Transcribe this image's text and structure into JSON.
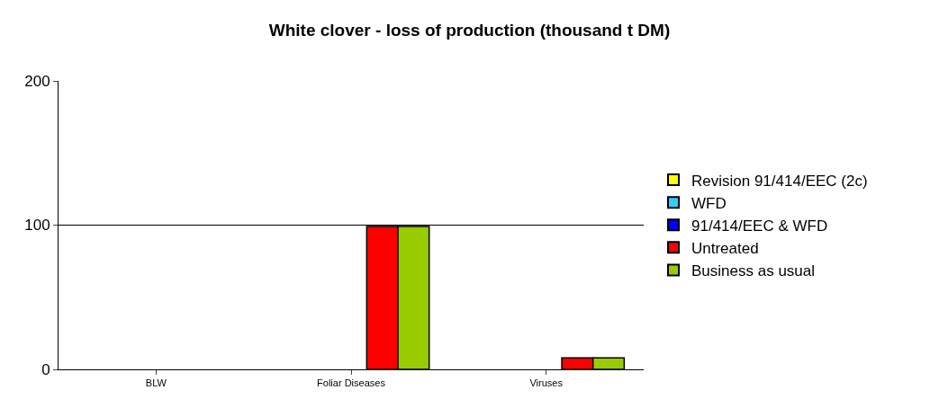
{
  "chart_data": {
    "type": "bar",
    "title": "White clover - loss of production (thousand t DM)",
    "categories": [
      "BLW",
      "Foliar Diseases",
      "Viruses"
    ],
    "series": [
      {
        "name": "Revision 91/414/EEC (2c)",
        "color": "#ffff00",
        "values": [
          null,
          null,
          null
        ]
      },
      {
        "name": "WFD",
        "color": "#33ccff",
        "values": [
          null,
          null,
          null
        ]
      },
      {
        "name": "91/414/EEC & WFD",
        "color": "#0000ff",
        "values": [
          null,
          null,
          null
        ]
      },
      {
        "name": "Untreated",
        "color": "#ff0000",
        "values": [
          null,
          99,
          8
        ]
      },
      {
        "name": "Business as usual",
        "color": "#99cc00",
        "values": [
          null,
          99,
          8
        ]
      }
    ],
    "ylim": [
      0,
      200
    ],
    "yticks": [
      0,
      100,
      200
    ],
    "grid": "y",
    "legend": "right"
  }
}
